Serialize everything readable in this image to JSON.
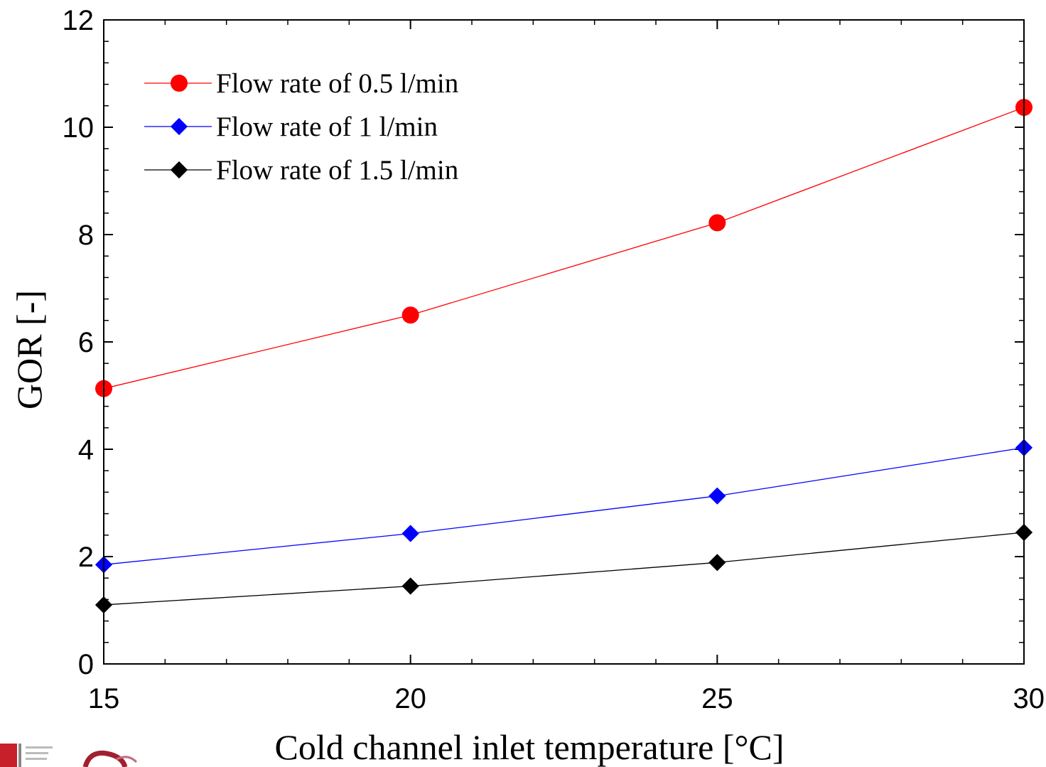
{
  "chart_data": {
    "type": "line",
    "title": "",
    "xlabel": "Cold channel inlet temperature [°C]",
    "ylabel": "GOR [-]",
    "xlim": [
      15,
      30
    ],
    "ylim": [
      0,
      12
    ],
    "x_major_ticks": [
      15,
      20,
      25,
      30
    ],
    "x_minor_step": 1,
    "y_major_ticks": [
      0,
      2,
      4,
      6,
      8,
      10,
      12
    ],
    "y_minor_step": 0.4,
    "x_tick_labels": [
      "15",
      "20",
      "25",
      "30"
    ],
    "y_tick_labels": [
      "0",
      "2",
      "4",
      "6",
      "8",
      "10",
      "12"
    ],
    "grid": false,
    "legend_position": "top-left",
    "x": [
      15,
      20,
      25,
      30
    ],
    "series": [
      {
        "name": "Flow rate of 0.5 l/min",
        "values": [
          5.13,
          6.5,
          8.22,
          10.37
        ],
        "color": "#ff0000",
        "marker": "circle"
      },
      {
        "name": "Flow rate of 1 l/min",
        "values": [
          1.85,
          2.43,
          3.13,
          4.03
        ],
        "color": "#0000ff",
        "marker": "diamond"
      },
      {
        "name": "Flow rate of 1.5 l/min",
        "values": [
          1.1,
          1.45,
          1.89,
          2.45
        ],
        "color": "#000000",
        "marker": "diamond"
      }
    ]
  }
}
